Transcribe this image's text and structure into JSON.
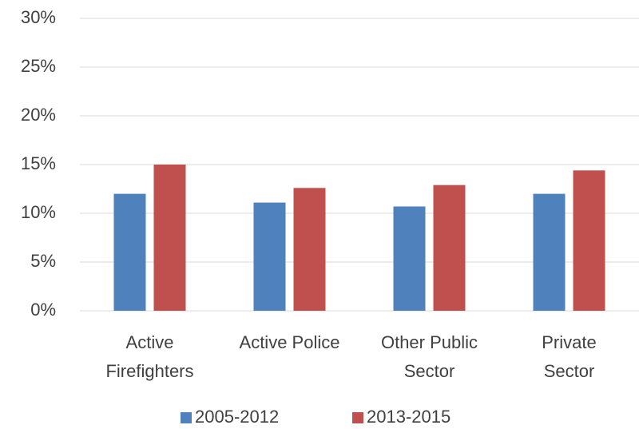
{
  "chart_data": {
    "type": "bar",
    "categories": [
      [
        "Active",
        "Firefighters"
      ],
      [
        "Active Police"
      ],
      [
        "Other Public",
        "Sector"
      ],
      [
        "Private",
        "Sector"
      ]
    ],
    "series": [
      {
        "name": "2005-2012",
        "color": "#4f81bd",
        "values": [
          12.0,
          11.1,
          10.7,
          12.0
        ]
      },
      {
        "name": "2013-2015",
        "color": "#c0504d",
        "values": [
          15.0,
          12.6,
          12.9,
          14.4
        ]
      }
    ],
    "ylim": [
      0,
      30
    ],
    "yticks": [
      {
        "value": 0,
        "label": "0%"
      },
      {
        "value": 5,
        "label": "5%"
      },
      {
        "value": 10,
        "label": "10%"
      },
      {
        "value": 15,
        "label": "15%"
      },
      {
        "value": 20,
        "label": "20%"
      },
      {
        "value": 25,
        "label": "25%"
      },
      {
        "value": 30,
        "label": "30%"
      }
    ],
    "grid": true,
    "legend": "bottom"
  }
}
